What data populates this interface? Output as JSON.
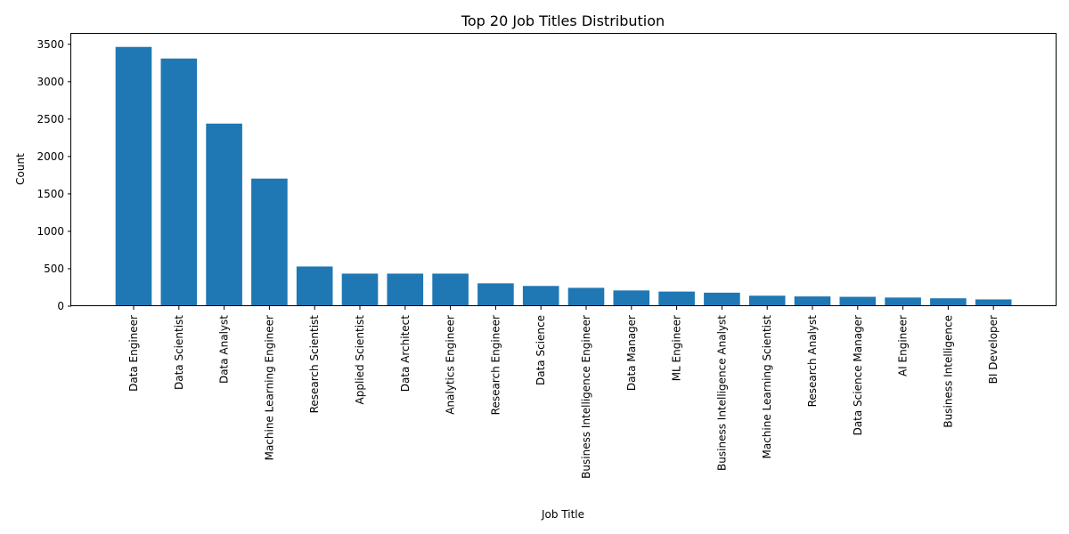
{
  "chart_data": {
    "type": "bar",
    "title": "Top 20 Job Titles Distribution",
    "xlabel": "Job Title",
    "ylabel": "Count",
    "categories": [
      "Data Engineer",
      "Data Scientist",
      "Data Analyst",
      "Machine Learning Engineer",
      "Research Scientist",
      "Applied Scientist",
      "Data Architect",
      "Analytics Engineer",
      "Research Engineer",
      "Data Science",
      "Business Intelligence Engineer",
      "Data Manager",
      "ML Engineer",
      "Business Intelligence Analyst",
      "Machine Learning Scientist",
      "Research Analyst",
      "Data Science Manager",
      "AI Engineer",
      "Business Intelligence",
      "BI Developer"
    ],
    "values": [
      3465,
      3310,
      2440,
      1705,
      530,
      435,
      435,
      435,
      305,
      270,
      245,
      210,
      195,
      180,
      140,
      130,
      125,
      115,
      105,
      90
    ],
    "ylim": [
      0,
      3640
    ],
    "yticks": [
      0,
      500,
      1000,
      1500,
      2000,
      2500,
      3000,
      3500
    ],
    "grid": false,
    "legend": "none",
    "bar_color": "#1f77b4"
  }
}
